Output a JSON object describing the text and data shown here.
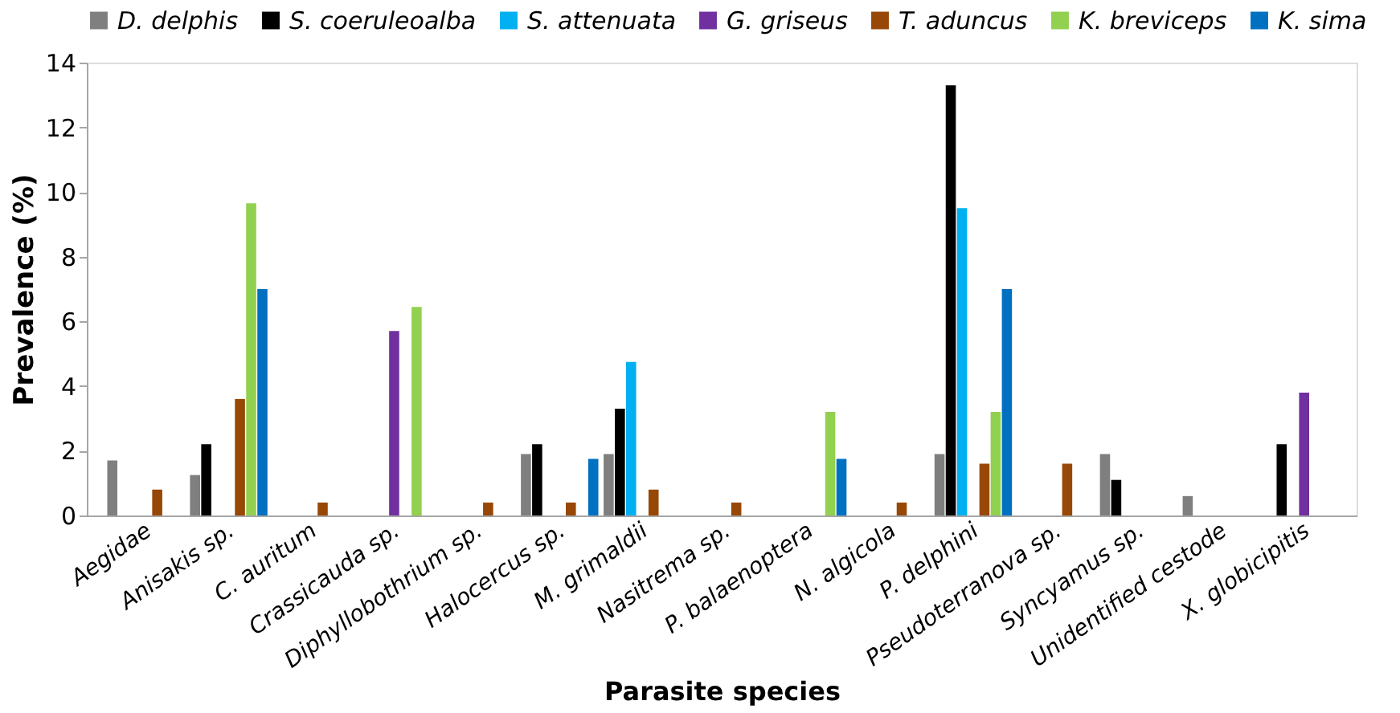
{
  "chart_data": {
    "type": "bar",
    "xlabel": "Parasite species",
    "ylabel": "Prevalence (%)",
    "categories": [
      "Aegidae",
      "Anisakis sp.",
      "C. auritum",
      "Crassicauda sp.",
      "Diphyllobothrium sp.",
      "Halocercus sp.",
      "M. grimaldii",
      "Nasitrema sp.",
      "P. balaenoptera",
      "N. algicola",
      "P. delphini",
      "Pseudoterranova sp.",
      "Syncyamus sp.",
      "Unidentified cestode",
      "X. globicipitis"
    ],
    "series": [
      {
        "name": "D. delphis",
        "color": "#7f7f7f",
        "values": [
          1.7,
          1.25,
          null,
          null,
          null,
          1.9,
          1.9,
          null,
          null,
          null,
          1.9,
          null,
          1.9,
          0.6,
          null
        ]
      },
      {
        "name": "S. coeruleoalba",
        "color": "#000000",
        "values": [
          null,
          2.2,
          null,
          null,
          null,
          2.2,
          3.3,
          null,
          null,
          null,
          13.3,
          null,
          1.1,
          null,
          2.2
        ]
      },
      {
        "name": "S. attenuata",
        "color": "#00b0f0",
        "values": [
          null,
          null,
          null,
          null,
          null,
          null,
          4.75,
          null,
          null,
          null,
          9.5,
          null,
          null,
          null,
          null
        ]
      },
      {
        "name": "G. griseus",
        "color": "#7030a0",
        "values": [
          null,
          null,
          null,
          5.7,
          null,
          null,
          null,
          null,
          null,
          null,
          null,
          null,
          null,
          null,
          3.8
        ]
      },
      {
        "name": "T. aduncus",
        "color": "#974706",
        "values": [
          0.8,
          3.6,
          0.4,
          null,
          0.4,
          0.4,
          0.8,
          0.4,
          null,
          0.4,
          1.6,
          1.6,
          null,
          null,
          null
        ]
      },
      {
        "name": "K. breviceps",
        "color": "#92d050",
        "values": [
          null,
          9.65,
          null,
          6.45,
          null,
          null,
          null,
          null,
          3.2,
          null,
          3.2,
          null,
          null,
          null,
          null
        ]
      },
      {
        "name": "K. sima",
        "color": "#0070c0",
        "values": [
          null,
          7.0,
          null,
          null,
          null,
          1.75,
          null,
          null,
          1.75,
          null,
          7.0,
          null,
          null,
          null,
          null
        ]
      }
    ],
    "ylim": [
      0,
      14
    ],
    "yticks": [
      0,
      2,
      4,
      6,
      8,
      10,
      12,
      14
    ],
    "grid": false,
    "legend": "top"
  }
}
